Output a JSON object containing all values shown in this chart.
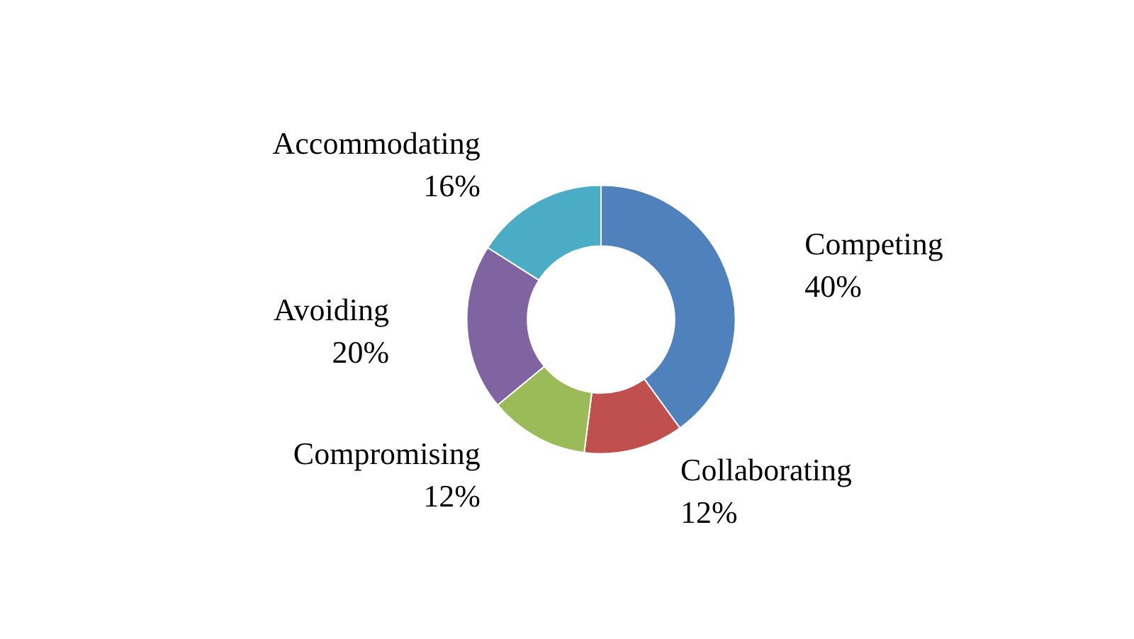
{
  "chart_data": {
    "type": "donut",
    "categories": [
      "Competing",
      "Collaborating",
      "Compromising",
      "Avoiding",
      "Accommodating"
    ],
    "values": [
      40,
      12,
      12,
      20,
      16
    ],
    "value_labels": [
      "40%",
      "12%",
      "12%",
      "20%",
      "16%"
    ],
    "colors": [
      "#4f81bd",
      "#c0504d",
      "#9bbb59",
      "#8064a2",
      "#4bacc6"
    ]
  }
}
